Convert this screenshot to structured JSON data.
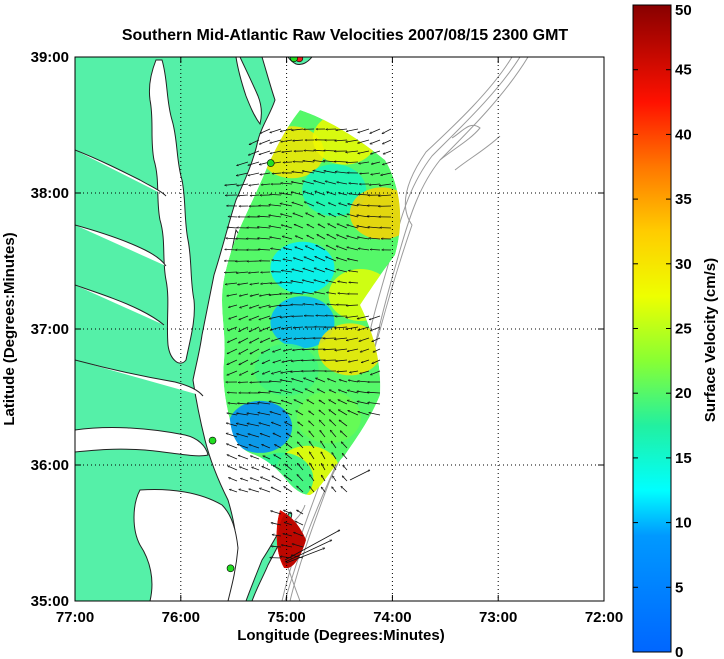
{
  "title": "Southern Mid-Atlantic Raw Velocities 2007/08/15 2300 GMT",
  "xlabel": "Longitude (Degrees:Minutes)",
  "ylabel": "Latitude (Degrees:Minutes)",
  "colorbar_label": "Surface Velocity (cm/s)",
  "colors": {
    "title": "#0000ee",
    "land": "#55f0a8",
    "water": "#ffffff",
    "coast": "#222222",
    "bathymetry": "#9a9a9a",
    "vector": "#111111",
    "station": "#22dd22",
    "station_alt": "#ee2222"
  },
  "chart_data": {
    "type": "heatmap",
    "title": "Southern Mid-Atlantic Raw Velocities 2007/08/15 2300 GMT",
    "xlabel": "Longitude (Degrees:Minutes)",
    "ylabel": "Latitude (Degrees:Minutes)",
    "xlim": [
      -77,
      -72
    ],
    "ylim": [
      35,
      39
    ],
    "x_ticks": [
      {
        "value": -77,
        "label": "77:00"
      },
      {
        "value": -76,
        "label": "76:00"
      },
      {
        "value": -75,
        "label": "75:00"
      },
      {
        "value": -74,
        "label": "74:00"
      },
      {
        "value": -73,
        "label": "73:00"
      },
      {
        "value": -72,
        "label": "72:00"
      }
    ],
    "y_ticks": [
      {
        "value": 35,
        "label": "35:00"
      },
      {
        "value": 36,
        "label": "36:00"
      },
      {
        "value": 37,
        "label": "37:00"
      },
      {
        "value": 38,
        "label": "38:00"
      },
      {
        "value": 39,
        "label": "39:00"
      }
    ],
    "grid": true,
    "colorbar": {
      "label": "Surface Velocity (cm/s)",
      "range": [
        0,
        50
      ],
      "ticks": [
        0,
        5,
        10,
        15,
        20,
        25,
        30,
        35,
        40,
        45,
        50
      ]
    },
    "velocity_regions": [
      {
        "lon": -74.95,
        "lat": 38.3,
        "speed": 30
      },
      {
        "lon": -74.45,
        "lat": 38.4,
        "speed": 28
      },
      {
        "lon": -74.55,
        "lat": 38.02,
        "speed": 16
      },
      {
        "lon": -74.1,
        "lat": 37.85,
        "speed": 32
      },
      {
        "lon": -75.15,
        "lat": 37.7,
        "speed": 20
      },
      {
        "lon": -74.85,
        "lat": 37.45,
        "speed": 12
      },
      {
        "lon": -74.3,
        "lat": 37.25,
        "speed": 27
      },
      {
        "lon": -74.85,
        "lat": 37.05,
        "speed": 10
      },
      {
        "lon": -74.4,
        "lat": 36.85,
        "speed": 30
      },
      {
        "lon": -75.0,
        "lat": 36.7,
        "speed": 19
      },
      {
        "lon": -75.25,
        "lat": 36.28,
        "speed": 6
      },
      {
        "lon": -74.6,
        "lat": 36.35,
        "speed": 21
      },
      {
        "lon": -74.8,
        "lat": 35.95,
        "speed": 28
      },
      {
        "lon": -75.05,
        "lat": 35.9,
        "speed": 18
      },
      {
        "lon": -74.95,
        "lat": 35.45,
        "speed": 47
      }
    ],
    "stations": [
      {
        "lon": -74.88,
        "lat": 38.99,
        "color": "#ee2222"
      },
      {
        "lon": -74.93,
        "lat": 38.99,
        "color": "#22dd22"
      },
      {
        "lon": -75.15,
        "lat": 38.22,
        "color": "#22dd22"
      },
      {
        "lon": -75.7,
        "lat": 36.18,
        "color": "#22dd22"
      },
      {
        "lon": -75.53,
        "lat": 35.24,
        "color": "#22dd22"
      }
    ]
  }
}
